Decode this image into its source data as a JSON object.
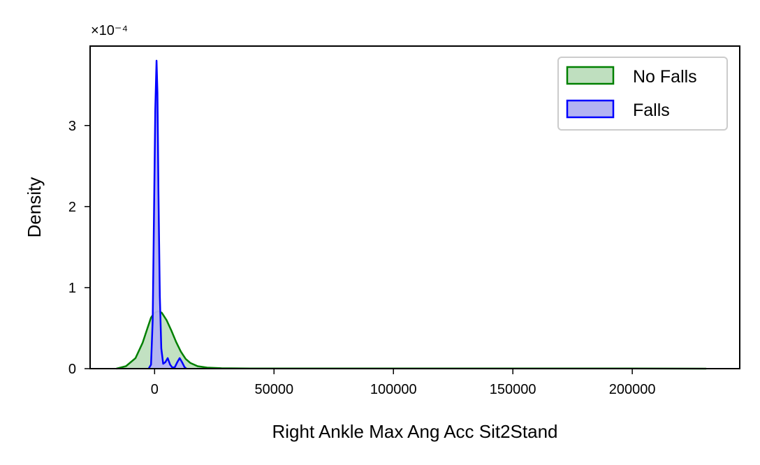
{
  "chart_data": {
    "type": "area",
    "xlabel": "Right Ankle Max Ang Acc Sit2Stand",
    "ylabel": "Density",
    "y_offset_label": "×10⁻⁴",
    "xlim": [
      -27000,
      245000
    ],
    "ylim": [
      0,
      3.98
    ],
    "x_ticks": [
      0,
      50000,
      100000,
      150000,
      200000
    ],
    "x_tick_labels": [
      "0",
      "50000",
      "100000",
      "150000",
      "200000"
    ],
    "y_ticks": [
      0,
      1,
      2,
      3
    ],
    "y_tick_labels": [
      "0",
      "1",
      "2",
      "3"
    ],
    "grid": false,
    "legend_position": "top-right",
    "series": [
      {
        "name": "No Falls",
        "color": "#008000",
        "fill": "#bfdfbf",
        "x": [
          -16000,
          -12000,
          -8000,
          -5000,
          -3000,
          -1500,
          0,
          1500,
          3000,
          5000,
          7000,
          9000,
          11000,
          13000,
          15000,
          18000,
          22000,
          28000,
          40000,
          80000,
          150000,
          200000,
          231000
        ],
        "y": [
          0.0,
          0.03,
          0.13,
          0.32,
          0.5,
          0.63,
          0.69,
          0.71,
          0.69,
          0.6,
          0.47,
          0.33,
          0.21,
          0.12,
          0.07,
          0.03,
          0.013,
          0.005,
          0.002,
          0.002,
          0.002,
          0.002,
          0.0
        ]
      },
      {
        "name": "Falls",
        "color": "#0000ff",
        "fill": "#b3b3f2",
        "x": [
          -2500,
          -1500,
          -800,
          -300,
          300,
          800,
          1200,
          1600,
          2200,
          2800,
          3600,
          4500,
          5500,
          6500,
          7500,
          8500,
          9500,
          10500,
          11500,
          12500,
          13300
        ],
        "y": [
          0.0,
          0.05,
          0.6,
          1.8,
          3.2,
          3.8,
          3.4,
          2.2,
          0.9,
          0.25,
          0.06,
          0.08,
          0.13,
          0.05,
          0.01,
          0.02,
          0.08,
          0.13,
          0.08,
          0.02,
          0.0
        ]
      }
    ]
  }
}
